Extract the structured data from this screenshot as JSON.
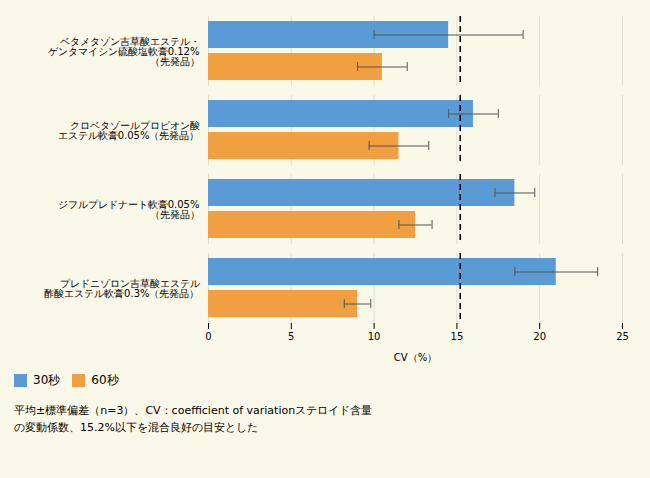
{
  "chart_data": {
    "type": "bar",
    "orientation": "horizontal",
    "categories": [
      "ベタメタゾン吉草酸エステル・\nゲンタマイシン硫酸塩軟膏0.12%\n（先発品）",
      "クロベタゾールプロピオン酸\nエステル軟膏0.05%（先発品）",
      "ジフルプレドナート軟膏0.05%\n（先発品）",
      "プレドニゾロン吉草酸エステル\n酢酸エステル軟膏0.3%（先発品）"
    ],
    "series": [
      {
        "name": "30秒",
        "color": "#5b9bd5",
        "values": [
          14.5,
          16.0,
          18.5,
          21.0
        ],
        "errors": [
          4.5,
          1.5,
          1.2,
          2.5
        ]
      },
      {
        "name": "60秒",
        "color": "#f0a040",
        "values": [
          10.5,
          11.5,
          12.5,
          9.0
        ],
        "errors": [
          1.5,
          1.8,
          1.0,
          0.8
        ]
      }
    ],
    "vline": 15.2,
    "xlabel": "CV（%）",
    "xlim": [
      0,
      25
    ],
    "xticks": [
      0,
      5,
      10,
      15,
      20,
      25
    ],
    "grid": true,
    "legend": "lower left",
    "background_color": "#faf8e8",
    "footnotes": [
      "平均±標準偏差（n=3）、CV：coefficient of variationステロイド含量",
      "の変動係数、15.2%以下を混合良好の目安とした"
    ]
  }
}
